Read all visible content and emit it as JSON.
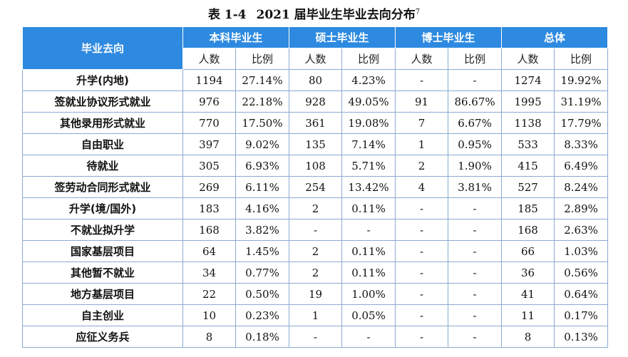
{
  "caption": {
    "table_no": "表 1-4",
    "title": "2021 届毕业生毕业去向分布",
    "footnote": "7"
  },
  "header": {
    "row_label": "毕业去向",
    "groups": [
      "本科毕业生",
      "硕士毕业生",
      "博士毕业生",
      "总体"
    ],
    "sub": [
      "人数",
      "比例",
      "人数",
      "比例",
      "人数",
      "比例",
      "人数",
      "比例"
    ]
  },
  "rows": [
    {
      "label": "升学(内地)",
      "cells": [
        "1194",
        "27.14%",
        "80",
        "4.23%",
        "-",
        "-",
        "1274",
        "19.92%"
      ]
    },
    {
      "label": "签就业协议形式就业",
      "cells": [
        "976",
        "22.18%",
        "928",
        "49.05%",
        "91",
        "86.67%",
        "1995",
        "31.19%"
      ]
    },
    {
      "label": "其他录用形式就业",
      "cells": [
        "770",
        "17.50%",
        "361",
        "19.08%",
        "7",
        "6.67%",
        "1138",
        "17.79%"
      ]
    },
    {
      "label": "自由职业",
      "cells": [
        "397",
        "9.02%",
        "135",
        "7.14%",
        "1",
        "0.95%",
        "533",
        "8.33%"
      ]
    },
    {
      "label": "待就业",
      "cells": [
        "305",
        "6.93%",
        "108",
        "5.71%",
        "2",
        "1.90%",
        "415",
        "6.49%"
      ]
    },
    {
      "label": "签劳动合同形式就业",
      "cells": [
        "269",
        "6.11%",
        "254",
        "13.42%",
        "4",
        "3.81%",
        "527",
        "8.24%"
      ]
    },
    {
      "label": "升学(境/国外)",
      "cells": [
        "183",
        "4.16%",
        "2",
        "0.11%",
        "-",
        "-",
        "185",
        "2.89%"
      ]
    },
    {
      "label": "不就业拟升学",
      "cells": [
        "168",
        "3.82%",
        "-",
        "-",
        "-",
        "-",
        "168",
        "2.63%"
      ]
    },
    {
      "label": "国家基层项目",
      "cells": [
        "64",
        "1.45%",
        "2",
        "0.11%",
        "-",
        "-",
        "66",
        "1.03%"
      ]
    },
    {
      "label": "其他暂不就业",
      "cells": [
        "34",
        "0.77%",
        "2",
        "0.11%",
        "-",
        "-",
        "36",
        "0.56%"
      ]
    },
    {
      "label": "地方基层项目",
      "cells": [
        "22",
        "0.50%",
        "19",
        "1.00%",
        "-",
        "-",
        "41",
        "0.64%"
      ]
    },
    {
      "label": "自主创业",
      "cells": [
        "10",
        "0.23%",
        "1",
        "0.05%",
        "-",
        "-",
        "11",
        "0.17%"
      ]
    },
    {
      "label": "应征义务兵",
      "cells": [
        "8",
        "0.18%",
        "-",
        "-",
        "-",
        "-",
        "8",
        "0.13%"
      ]
    }
  ]
}
